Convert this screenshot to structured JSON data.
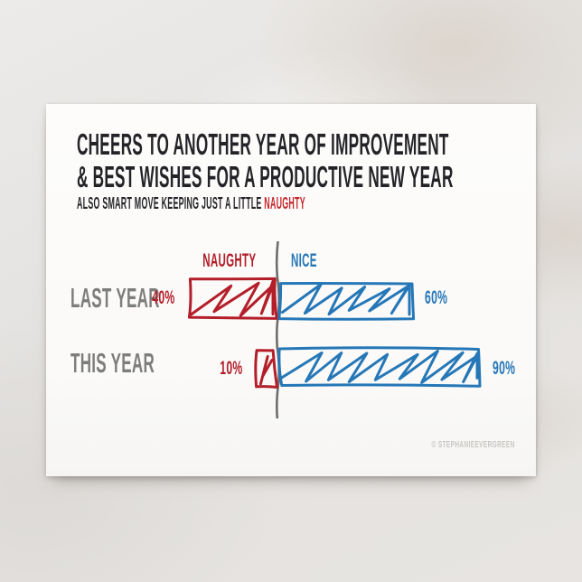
{
  "card": {
    "title_line1": "CHEERS TO ANOTHER YEAR OF IMPROVEMENT",
    "title_line2": "& BEST WISHES FOR A PRODUCTIVE NEW YEAR",
    "subtitle_prefix": "ALSO SMART MOVE KEEPING JUST A LITTLE",
    "subtitle_highlight": "NAUGHTY",
    "watermark": "© STEPHANIEEVERGREEN"
  },
  "colors": {
    "naughty_red": "#b31e29",
    "nice_blue": "#2577b7",
    "accent_red": "#c5262c",
    "label_gray": "#7d7d7d",
    "divider_gray": "#6e6e6e",
    "card_white": "#fbfaf8",
    "title_black": "#242428"
  },
  "chart_data": {
    "type": "bar",
    "subtype": "diverging-horizontal",
    "style": "hand-drawn-sketch",
    "categories": [
      "LAST YEAR",
      "THIS YEAR"
    ],
    "series": [
      {
        "name": "NAUGHTY",
        "side": "left",
        "color": "#b31e29",
        "values": [
          40,
          10
        ]
      },
      {
        "name": "NICE",
        "side": "right",
        "color": "#2577b7",
        "values": [
          60,
          90
        ]
      }
    ],
    "unit": "%",
    "xlim": [
      0,
      100
    ],
    "grid": false,
    "legend_position": "top-center-split",
    "value_labels": [
      [
        "40%",
        "60%"
      ],
      [
        "10%",
        "90%"
      ]
    ]
  }
}
